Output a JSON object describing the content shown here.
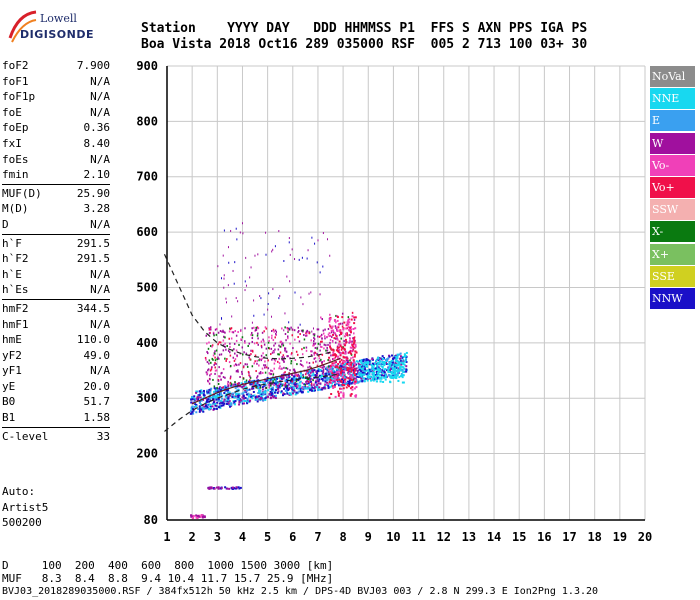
{
  "logo": {
    "line1": "Lowell",
    "line2": "DIGISONDE"
  },
  "header": {
    "labels": [
      "Station",
      "YYYY",
      "DAY",
      "DDD",
      "HHMMSS",
      "P1",
      "FFS",
      "S",
      "AXN",
      "PPS",
      "IGA",
      "PS"
    ],
    "values": [
      "Boa Vista",
      "2018",
      "Oct16",
      "289",
      "035000",
      "RSF",
      "005",
      "2",
      "713",
      "100",
      "03+",
      "30"
    ]
  },
  "params": [
    {
      "label": "foF2",
      "value": "7.900"
    },
    {
      "label": "foF1",
      "value": "N/A"
    },
    {
      "label": "foF1p",
      "value": "N/A"
    },
    {
      "label": "foE",
      "value": "N/A"
    },
    {
      "label": "foEp",
      "value": "0.36"
    },
    {
      "label": "fxI",
      "value": "8.40"
    },
    {
      "label": "foEs",
      "value": "N/A"
    },
    {
      "label": "fmin",
      "value": "2.10"
    },
    {
      "label": "MUF(D)",
      "value": "25.90"
    },
    {
      "label": "M(D)",
      "value": "3.28"
    },
    {
      "label": "D",
      "value": "N/A"
    },
    {
      "label": "h`F",
      "value": "291.5"
    },
    {
      "label": "h`F2",
      "value": "291.5"
    },
    {
      "label": "h`E",
      "value": "N/A"
    },
    {
      "label": "h`Es",
      "value": "N/A"
    },
    {
      "label": "hmF2",
      "value": "344.5"
    },
    {
      "label": "hmF1",
      "value": "N/A"
    },
    {
      "label": "hmE",
      "value": "110.0"
    },
    {
      "label": "yF2",
      "value": "49.0"
    },
    {
      "label": "yF1",
      "value": "N/A"
    },
    {
      "label": "yE",
      "value": "20.0"
    },
    {
      "label": "B0",
      "value": "51.7"
    },
    {
      "label": "B1",
      "value": "1.58"
    },
    {
      "label": "C-level",
      "value": "33"
    }
  ],
  "auto": {
    "line1": "Auto:",
    "line2": "Artist5",
    "line3": "500200"
  },
  "legend": [
    {
      "label": "NoVal",
      "color": "#8c8c8c"
    },
    {
      "label": "NNE",
      "color": "#18d8f0"
    },
    {
      "label": "E",
      "color": "#3aa0f0"
    },
    {
      "label": "W",
      "color": "#a0109e"
    },
    {
      "label": "Vo-",
      "color": "#f040b8"
    },
    {
      "label": "Vo+",
      "color": "#f0104a"
    },
    {
      "label": "SSW",
      "color": "#f4b0b0"
    },
    {
      "label": "X-",
      "color": "#0a7a10"
    },
    {
      "label": "X+",
      "color": "#7ac060"
    },
    {
      "label": "SSE",
      "color": "#d0d020"
    },
    {
      "label": "NNW",
      "color": "#1a10c8"
    }
  ],
  "chart_data": {
    "type": "scatter",
    "xlabel": "",
    "ylabel": "",
    "xlim": [
      1,
      20
    ],
    "ylim": [
      80,
      900
    ],
    "x_ticks": [
      1,
      2,
      3,
      4,
      5,
      6,
      7,
      8,
      9,
      10,
      11,
      12,
      13,
      14,
      15,
      16,
      17,
      18,
      19,
      20
    ],
    "y_ticks": [
      80,
      200,
      300,
      400,
      500,
      600,
      700,
      800,
      900
    ],
    "profile_curve": {
      "x": [
        0.9,
        1.5,
        2.0,
        2.5,
        3.0,
        3.5,
        4.0,
        4.5,
        5.0,
        5.5,
        6.0,
        6.5,
        7.0,
        7.5,
        7.9
      ],
      "y": [
        240,
        262,
        278,
        290,
        300,
        308,
        316,
        322,
        326,
        330,
        333,
        336,
        338,
        341,
        344
      ]
    },
    "upper_curve": {
      "x": [
        0.9,
        1.3,
        1.7,
        2.0,
        2.5,
        3.0,
        3.5,
        4.0,
        4.5,
        5.0,
        5.5,
        6.0,
        6.5,
        7.0,
        7.5
      ],
      "y": [
        560,
        520,
        480,
        450,
        420,
        400,
        388,
        380,
        375,
        372,
        371,
        372,
        374,
        378,
        383
      ]
    },
    "trace_curve": {
      "x": [
        2.0,
        2.5,
        3.0,
        3.5,
        4.0,
        4.5,
        5.0,
        5.5,
        6.0,
        6.5,
        7.0,
        7.5,
        7.9
      ],
      "y": [
        290,
        300,
        310,
        318,
        325,
        330,
        335,
        340,
        345,
        350,
        357,
        365,
        372
      ]
    }
  },
  "distance_row": {
    "label": "D",
    "values": [
      "100",
      "200",
      "400",
      "600",
      "800",
      "1000",
      "1500",
      "3000"
    ],
    "unit": "[km]"
  },
  "muf_row": {
    "label": "MUF",
    "values": [
      "8.3",
      "8.4",
      "8.8",
      "9.4",
      "10.4",
      "11.7",
      "15.7",
      "25.9"
    ],
    "unit": "[MHz]"
  },
  "footer_info": "BVJ03_2018289035000.RSF / 384fx512h 50 kHz 2.5 km / DPS-4D BVJ03 003 / 2.8 N 299.3 E Ion2Png 1.3.20"
}
